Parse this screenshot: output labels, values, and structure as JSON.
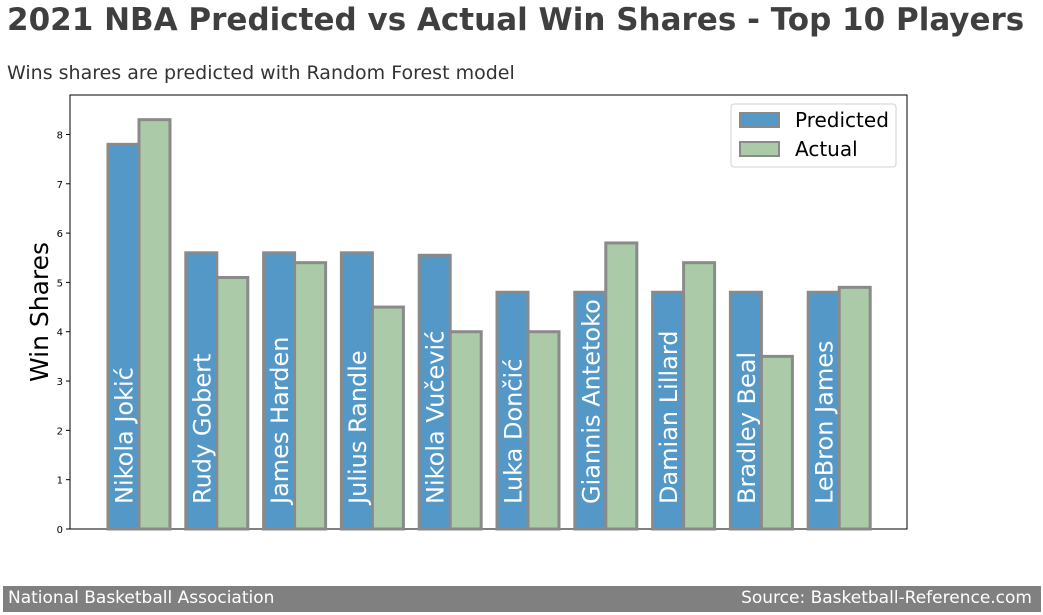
{
  "header": {
    "title": "2021 NBA Predicted vs Actual Win Shares - Top 10 Players",
    "subtitle": "Wins shares are predicted with Random Forest model"
  },
  "footer": {
    "left": "National Basketball Association",
    "right": "Source: Basketball-Reference.com"
  },
  "chart_data": {
    "type": "bar",
    "title": "2021 NBA Predicted vs Actual Win Shares - Top 10 Players",
    "subtitle": "Wins shares are predicted with Random Forest model",
    "xlabel": "",
    "ylabel": "Win Shares",
    "ylim": [
      0,
      8.8
    ],
    "yticks": [
      0,
      1,
      2,
      3,
      4,
      5,
      6,
      7,
      8
    ],
    "grid": false,
    "legend": "top-right",
    "categories": [
      "Nikola Jokić",
      "Rudy Gobert",
      "James Harden",
      "Julius Randle",
      "Nikola Vučević",
      "Luka Dončić",
      "Giannis Antetoko",
      "Damian Lillard",
      "Bradley Beal",
      "LeBron James"
    ],
    "series": [
      {
        "name": "Predicted",
        "color": "#5498c8",
        "values": [
          7.8,
          5.6,
          5.6,
          5.6,
          5.55,
          4.8,
          4.8,
          4.8,
          4.8,
          4.8
        ]
      },
      {
        "name": "Actual",
        "color": "#aacaa8",
        "values": [
          8.3,
          5.1,
          5.4,
          4.5,
          4.0,
          4.0,
          5.8,
          5.4,
          3.5,
          4.9
        ]
      }
    ],
    "bar_edge_color": "#8a8a8a",
    "category_label_color": "#ffffff"
  }
}
